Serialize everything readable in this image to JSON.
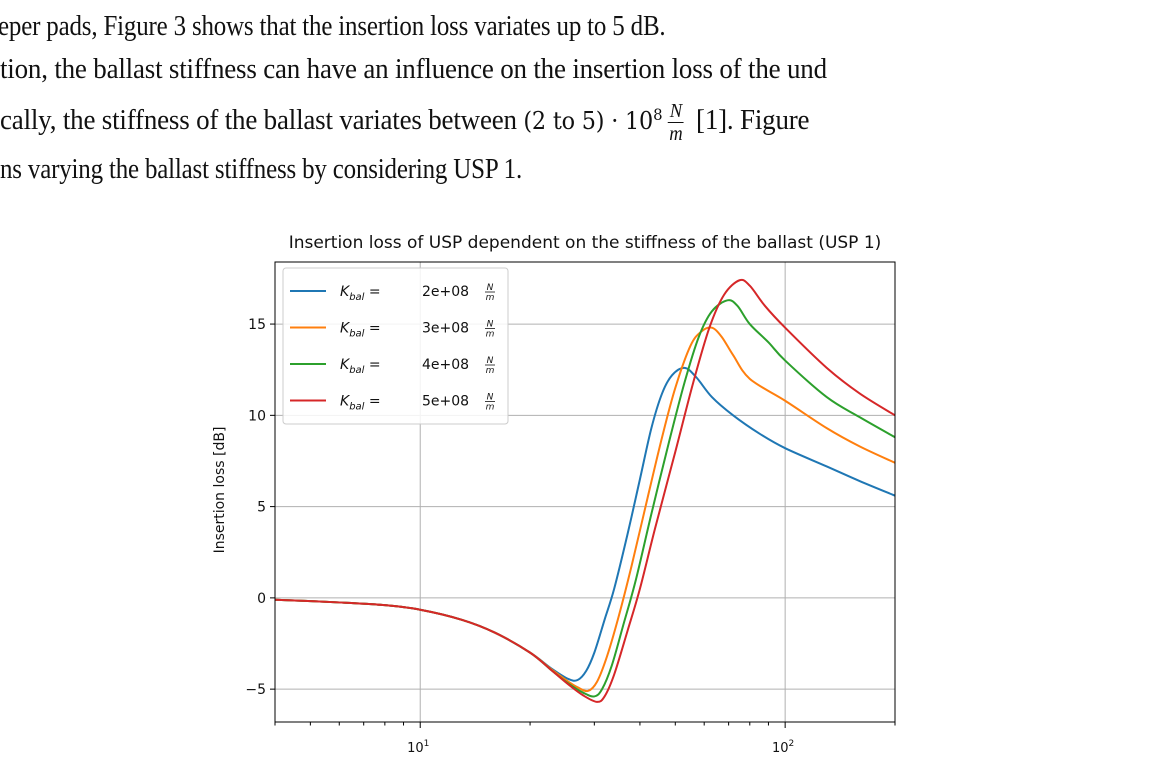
{
  "paragraph": {
    "line1": "eper pads, Figure 3 shows that the insertion loss variates up to 5 dB.",
    "line2": "tion, the ballast stiffness can have an influence on the insertion loss of the und",
    "line3_pre": "cally, the stiffness of the ballast variates between ",
    "line3_math": "(2 to 5) · 10",
    "line3_exp": "8",
    "line3_frac_num": "N",
    "line3_frac_den": "m",
    "line3_post": "[1]. Figure",
    "line4": "ns varying the ballast stiffness by considering USP 1."
  },
  "chart_data": {
    "type": "line",
    "title": "Insertion loss of USP dependent on the stiffness of the ballast (USP 1)",
    "xlabel": "",
    "ylabel": "Insertion loss [dB]",
    "xscale": "log",
    "xlim": [
      4,
      200
    ],
    "ylim": [
      -6.8,
      18.4
    ],
    "xticks": [
      {
        "value": 10,
        "label": "10",
        "exp": "1"
      },
      {
        "value": 100,
        "label": "10",
        "exp": "2"
      }
    ],
    "yticks": [
      -5,
      0,
      5,
      10,
      15
    ],
    "ytick_labels": [
      "−5",
      "0",
      "5",
      "10",
      "15"
    ],
    "grid": true,
    "legend_position": "top-left",
    "legend_prefix": "K",
    "legend_sub": "bal",
    "legend_eq": "=",
    "legend_unit_num": "N",
    "legend_unit_den": "m",
    "series": [
      {
        "name": "2e+08",
        "color": "#1f77b4",
        "points": [
          [
            4,
            -0.1
          ],
          [
            6,
            -0.25
          ],
          [
            8,
            -0.4
          ],
          [
            10,
            -0.65
          ],
          [
            13,
            -1.2
          ],
          [
            16,
            -1.9
          ],
          [
            20,
            -3.0
          ],
          [
            23,
            -3.9
          ],
          [
            25.5,
            -4.45
          ],
          [
            27,
            -4.5
          ],
          [
            28.5,
            -4.0
          ],
          [
            30,
            -3.0
          ],
          [
            32,
            -1.2
          ],
          [
            34,
            0.5
          ],
          [
            37,
            3.5
          ],
          [
            40,
            6.5
          ],
          [
            43,
            9.3
          ],
          [
            46,
            11.2
          ],
          [
            49,
            12.2
          ],
          [
            53,
            12.6
          ],
          [
            57,
            12.1
          ],
          [
            63,
            11.0
          ],
          [
            72,
            10.0
          ],
          [
            85,
            9.0
          ],
          [
            100,
            8.2
          ],
          [
            130,
            7.2
          ],
          [
            160,
            6.4
          ],
          [
            200,
            5.6
          ]
        ]
      },
      {
        "name": "3e+08",
        "color": "#ff7f0e",
        "points": [
          [
            4,
            -0.1
          ],
          [
            6,
            -0.25
          ],
          [
            8,
            -0.4
          ],
          [
            10,
            -0.65
          ],
          [
            13,
            -1.2
          ],
          [
            16,
            -1.9
          ],
          [
            20,
            -3.0
          ],
          [
            23,
            -3.95
          ],
          [
            25.5,
            -4.6
          ],
          [
            27,
            -4.9
          ],
          [
            28.8,
            -5.1
          ],
          [
            30.5,
            -4.6
          ],
          [
            32.5,
            -3.2
          ],
          [
            35,
            -1.0
          ],
          [
            38,
            1.8
          ],
          [
            42,
            5.5
          ],
          [
            46,
            8.8
          ],
          [
            50,
            11.5
          ],
          [
            55,
            13.8
          ],
          [
            59,
            14.6
          ],
          [
            63,
            14.8
          ],
          [
            67,
            14.3
          ],
          [
            72,
            13.3
          ],
          [
            80,
            12.0
          ],
          [
            100,
            10.8
          ],
          [
            130,
            9.3
          ],
          [
            160,
            8.3
          ],
          [
            200,
            7.4
          ]
        ]
      },
      {
        "name": "4e+08",
        "color": "#2ca02c",
        "points": [
          [
            4,
            -0.1
          ],
          [
            6,
            -0.25
          ],
          [
            8,
            -0.4
          ],
          [
            10,
            -0.65
          ],
          [
            13,
            -1.2
          ],
          [
            16,
            -1.9
          ],
          [
            20,
            -3.0
          ],
          [
            23,
            -4.0
          ],
          [
            25.5,
            -4.7
          ],
          [
            28,
            -5.2
          ],
          [
            30,
            -5.4
          ],
          [
            31.5,
            -5.0
          ],
          [
            33.5,
            -3.7
          ],
          [
            36,
            -1.5
          ],
          [
            39,
            1.0
          ],
          [
            43,
            4.6
          ],
          [
            48,
            8.5
          ],
          [
            53,
            11.8
          ],
          [
            58,
            14.3
          ],
          [
            63,
            15.7
          ],
          [
            69.5,
            16.3
          ],
          [
            74,
            16.0
          ],
          [
            80,
            15.0
          ],
          [
            90,
            14.0
          ],
          [
            100,
            13.0
          ],
          [
            130,
            11.0
          ],
          [
            160,
            9.9
          ],
          [
            200,
            8.8
          ]
        ]
      },
      {
        "name": "5e+08",
        "color": "#d62728",
        "points": [
          [
            4,
            -0.1
          ],
          [
            6,
            -0.25
          ],
          [
            8,
            -0.4
          ],
          [
            10,
            -0.65
          ],
          [
            13,
            -1.2
          ],
          [
            16,
            -1.9
          ],
          [
            20,
            -3.0
          ],
          [
            23,
            -4.0
          ],
          [
            25.5,
            -4.75
          ],
          [
            28,
            -5.35
          ],
          [
            30.5,
            -5.7
          ],
          [
            32,
            -5.4
          ],
          [
            34,
            -4.2
          ],
          [
            37,
            -1.8
          ],
          [
            40,
            0.5
          ],
          [
            44,
            3.8
          ],
          [
            50,
            8.0
          ],
          [
            56,
            11.8
          ],
          [
            62,
            14.8
          ],
          [
            68,
            16.6
          ],
          [
            75,
            17.4
          ],
          [
            80,
            17.1
          ],
          [
            88,
            16.0
          ],
          [
            100,
            14.8
          ],
          [
            130,
            12.6
          ],
          [
            160,
            11.2
          ],
          [
            200,
            10.0
          ]
        ]
      }
    ]
  }
}
